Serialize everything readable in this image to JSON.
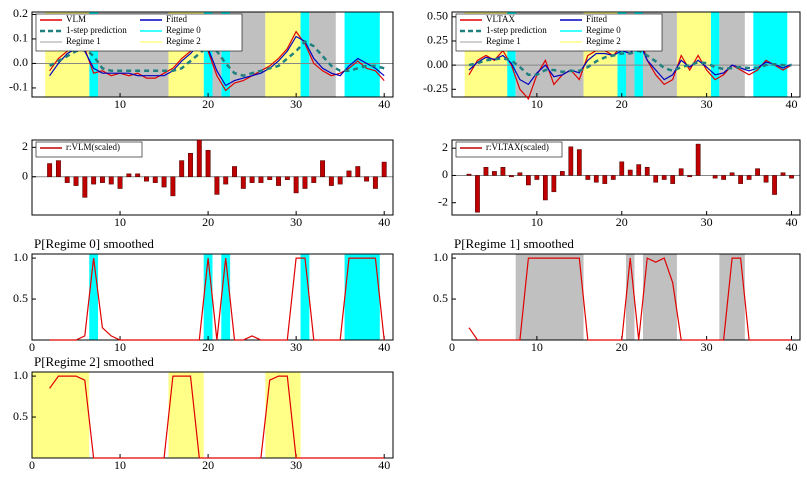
{
  "chart_data": [
    {
      "type": "line",
      "xlim": [
        0,
        41
      ],
      "xticks": [
        10,
        20,
        30,
        40
      ],
      "ylim": [
        -0.137,
        0.21
      ],
      "yticks": [
        -0.1,
        {
          "value": 0,
          "label": "0.0"
        },
        0.1,
        0.2
      ],
      "zero_line": true,
      "x": [
        2,
        3,
        4,
        5,
        6,
        7,
        8,
        9,
        10,
        11,
        12,
        13,
        14,
        15,
        16,
        17,
        18,
        19,
        20,
        21,
        22,
        23,
        24,
        25,
        26,
        27,
        28,
        29,
        30,
        31,
        32,
        33,
        34,
        35,
        36,
        37,
        38,
        39,
        40
      ],
      "series": [
        {
          "name": "VLM",
          "color": "#e00000",
          "values": [
            -0.03,
            0.02,
            0.05,
            0.08,
            0.06,
            -0.04,
            -0.03,
            -0.05,
            -0.04,
            -0.05,
            -0.04,
            -0.06,
            -0.06,
            -0.04,
            -0.02,
            0.02,
            0.05,
            0.1,
            0.05,
            -0.05,
            -0.11,
            -0.08,
            -0.07,
            -0.05,
            -0.03,
            -0.01,
            0.02,
            0.06,
            0.13,
            0.08,
            0.0,
            -0.03,
            -0.05,
            -0.04,
            -0.02,
            0.01,
            -0.02,
            -0.03,
            -0.07
          ]
        },
        {
          "name": "Fitted",
          "color": "#0000c0",
          "values": [
            -0.05,
            0.0,
            0.04,
            0.06,
            0.05,
            -0.02,
            -0.04,
            -0.04,
            -0.04,
            -0.04,
            -0.05,
            -0.05,
            -0.05,
            -0.05,
            -0.03,
            0.01,
            0.04,
            0.08,
            0.06,
            -0.03,
            -0.09,
            -0.07,
            -0.06,
            -0.05,
            -0.04,
            -0.02,
            0.01,
            0.05,
            0.11,
            0.09,
            0.02,
            -0.02,
            -0.04,
            -0.05,
            -0.01,
            0.02,
            0.0,
            -0.02,
            -0.05
          ]
        },
        {
          "name": "1-step prediction",
          "color": "#208080",
          "dash": true,
          "values": [
            -0.01,
            0.01,
            0.03,
            0.05,
            0.06,
            0.03,
            -0.02,
            -0.03,
            -0.03,
            -0.03,
            -0.03,
            -0.03,
            -0.03,
            -0.03,
            -0.03,
            -0.02,
            0.01,
            0.04,
            0.07,
            0.05,
            0.0,
            -0.04,
            -0.05,
            -0.04,
            -0.03,
            -0.02,
            -0.01,
            0.02,
            0.05,
            0.09,
            0.07,
            0.03,
            -0.01,
            -0.03,
            -0.03,
            -0.02,
            -0.01,
            -0.01,
            -0.02
          ]
        }
      ],
      "regimes": [
        {
          "name": "Regime 0",
          "color": "#00ffff",
          "spans": [
            [
              6.5,
              7.5
            ],
            [
              19.5,
              20.5
            ],
            [
              21.5,
              22.5
            ],
            [
              30.5,
              31.5
            ],
            [
              35.5,
              39.5
            ]
          ]
        },
        {
          "name": "Regime 1",
          "color": "#c0c0c0",
          "spans": [
            [
              7.5,
              15.5
            ],
            [
              20.5,
              21.5
            ],
            [
              22.5,
              26.5
            ],
            [
              31.5,
              34.5
            ]
          ]
        },
        {
          "name": "Regime 2",
          "color": "#ffff88",
          "spans": [
            [
              1.5,
              6.5
            ],
            [
              15.5,
              19.5
            ],
            [
              26.5,
              30.5
            ]
          ]
        }
      ]
    },
    {
      "type": "line",
      "xlim": [
        0,
        41
      ],
      "xticks": [
        10,
        20,
        30,
        40
      ],
      "ylim": [
        -0.33,
        0.55
      ],
      "yticks": [
        -0.25,
        {
          "value": 0,
          "label": "0.00"
        },
        0.25,
        {
          "value": 0.5,
          "label": "0.50"
        }
      ],
      "zero_line": true,
      "x": [
        2,
        3,
        4,
        5,
        6,
        7,
        8,
        9,
        10,
        11,
        12,
        13,
        14,
        15,
        16,
        17,
        18,
        19,
        20,
        21,
        22,
        23,
        24,
        25,
        26,
        27,
        28,
        29,
        30,
        31,
        32,
        33,
        34,
        35,
        36,
        37,
        38,
        39,
        40
      ],
      "series": [
        {
          "name": "VLTAX",
          "color": "#e00000",
          "values": [
            -0.1,
            0.05,
            0.1,
            0.05,
            0.15,
            0.0,
            -0.25,
            -0.35,
            -0.1,
            0.05,
            -0.2,
            -0.1,
            -0.05,
            -0.15,
            0.1,
            0.15,
            0.15,
            0.1,
            0.2,
            0.15,
            0.35,
            0.05,
            -0.1,
            -0.2,
            -0.15,
            0.1,
            -0.05,
            0.1,
            -0.05,
            -0.15,
            -0.1,
            0.0,
            -0.05,
            -0.1,
            -0.05,
            0.05,
            0.0,
            -0.05,
            0.0
          ]
        },
        {
          "name": "Fitted",
          "color": "#0000c0",
          "values": [
            -0.05,
            0.03,
            0.08,
            0.06,
            0.1,
            0.02,
            -0.15,
            -0.2,
            -0.08,
            0.0,
            -0.12,
            -0.1,
            -0.05,
            -0.08,
            0.05,
            0.12,
            0.12,
            0.1,
            0.15,
            0.12,
            0.25,
            0.05,
            -0.05,
            -0.15,
            -0.1,
            0.05,
            -0.02,
            0.05,
            -0.02,
            -0.1,
            -0.08,
            0.0,
            -0.03,
            -0.06,
            -0.03,
            0.03,
            0.01,
            -0.03,
            0.01
          ]
        },
        {
          "name": "1-step prediction",
          "color": "#208080",
          "dash": true,
          "values": [
            0.0,
            0.02,
            0.05,
            0.06,
            0.07,
            0.05,
            -0.02,
            -0.1,
            -0.1,
            -0.05,
            -0.05,
            -0.07,
            -0.06,
            -0.06,
            -0.02,
            0.04,
            0.08,
            0.1,
            0.12,
            0.12,
            0.15,
            0.1,
            0.04,
            -0.03,
            -0.06,
            -0.02,
            0.0,
            0.03,
            0.02,
            -0.02,
            -0.04,
            -0.03,
            -0.02,
            -0.03,
            -0.03,
            0.0,
            0.01,
            0.0,
            0.0
          ]
        }
      ],
      "regimes": [
        {
          "name": "Regime 0",
          "color": "#00ffff",
          "spans": [
            [
              6.5,
              7.5
            ],
            [
              19.5,
              20.5
            ],
            [
              21.5,
              22.5
            ],
            [
              30.5,
              31.5
            ],
            [
              35.5,
              39.5
            ]
          ]
        },
        {
          "name": "Regime 1",
          "color": "#c0c0c0",
          "spans": [
            [
              7.5,
              15.5
            ],
            [
              20.5,
              21.5
            ],
            [
              22.5,
              26.5
            ],
            [
              31.5,
              34.5
            ]
          ]
        },
        {
          "name": "Regime 2",
          "color": "#ffff88",
          "spans": [
            [
              1.5,
              6.5
            ],
            [
              15.5,
              19.5
            ],
            [
              26.5,
              30.5
            ]
          ]
        }
      ]
    },
    {
      "type": "bar",
      "xlim": [
        0,
        41
      ],
      "xticks": [
        10,
        20,
        30,
        40
      ],
      "ylim": [
        -2.6,
        2.5
      ],
      "yticks": [
        0,
        2
      ],
      "zero_line": true,
      "x": [
        2,
        3,
        4,
        5,
        6,
        7,
        8,
        9,
        10,
        11,
        12,
        13,
        14,
        15,
        16,
        17,
        18,
        19,
        20,
        21,
        22,
        23,
        24,
        25,
        26,
        27,
        28,
        29,
        30,
        31,
        32,
        33,
        34,
        35,
        36,
        37,
        38,
        39,
        40
      ],
      "series": [
        {
          "name": "r:VLM(scaled)",
          "color": "#c00000",
          "values": [
            0.9,
            1.1,
            -0.4,
            -0.6,
            -1.4,
            -0.5,
            -0.4,
            -0.5,
            -0.8,
            0.2,
            0.2,
            -0.3,
            -0.4,
            -0.7,
            -1.3,
            1.1,
            1.6,
            2.5,
            1.8,
            -1.2,
            -0.5,
            0.7,
            -0.8,
            -0.4,
            -0.4,
            -0.2,
            -0.6,
            -0.2,
            -1.1,
            -0.8,
            -0.4,
            1.1,
            -0.6,
            -0.5,
            0.4,
            0.7,
            -0.3,
            -0.8,
            1.0
          ]
        }
      ]
    },
    {
      "type": "bar",
      "xlim": [
        0,
        41
      ],
      "xticks": [
        10,
        20,
        30,
        40
      ],
      "ylim": [
        -2.9,
        2.6
      ],
      "yticks": [
        -2,
        0,
        2
      ],
      "zero_line": true,
      "x": [
        2,
        3,
        4,
        5,
        6,
        7,
        8,
        9,
        10,
        11,
        12,
        13,
        14,
        15,
        16,
        17,
        18,
        19,
        20,
        21,
        22,
        23,
        24,
        25,
        26,
        27,
        28,
        29,
        30,
        31,
        32,
        33,
        34,
        35,
        36,
        37,
        38,
        39,
        40
      ],
      "series": [
        {
          "name": "r:VLTAX(scaled)",
          "color": "#c00000",
          "values": [
            0.1,
            -2.7,
            0.6,
            0.3,
            0.6,
            -0.1,
            0.2,
            -0.7,
            -0.3,
            -1.8,
            -1.2,
            0.3,
            2.1,
            1.9,
            -0.3,
            -0.5,
            -0.6,
            -0.3,
            1.0,
            0.4,
            0.8,
            0.6,
            -0.5,
            -0.3,
            -0.6,
            0.5,
            -0.1,
            2.3,
            0.0,
            -0.2,
            -0.3,
            0.2,
            -0.6,
            -0.3,
            0.5,
            -0.5,
            -1.4,
            0.2,
            -0.2
          ]
        }
      ]
    },
    {
      "type": "line",
      "title": "P[Regime 0] smoothed",
      "xlim": [
        0,
        41
      ],
      "xticks": [
        0,
        10,
        20,
        30,
        40
      ],
      "ylim": [
        0,
        1.05
      ],
      "yticks": [
        0.5,
        {
          "value": 1,
          "label": "1.0"
        }
      ],
      "x": [
        2,
        3,
        4,
        5,
        6,
        7,
        8,
        9,
        10,
        11,
        12,
        13,
        14,
        15,
        16,
        17,
        18,
        19,
        20,
        21,
        22,
        23,
        24,
        25,
        26,
        27,
        28,
        29,
        30,
        31,
        32,
        33,
        34,
        35,
        36,
        37,
        38,
        39,
        40
      ],
      "series": [
        {
          "color": "#e00000",
          "values": [
            0,
            0,
            0,
            0,
            0.05,
            1,
            0.15,
            0.05,
            0,
            0,
            0,
            0,
            0,
            0,
            0,
            0,
            0,
            0,
            1,
            0,
            1,
            0,
            0,
            0.05,
            0,
            0,
            0,
            0,
            1,
            1,
            0,
            0,
            0,
            0,
            1,
            1,
            1,
            1,
            0
          ]
        }
      ],
      "shading": {
        "color": "#00ffff",
        "spans": [
          [
            6.5,
            7.5
          ],
          [
            19.5,
            20.5
          ],
          [
            21.5,
            22.5
          ],
          [
            30.5,
            31.5
          ],
          [
            35.5,
            39.5
          ]
        ]
      }
    },
    {
      "type": "line",
      "title": "P[Regime 1] smoothed",
      "xlim": [
        0,
        41
      ],
      "xticks": [
        0,
        10,
        20,
        30,
        40
      ],
      "ylim": [
        0,
        1.05
      ],
      "yticks": [
        0.5,
        {
          "value": 1,
          "label": "1.0"
        }
      ],
      "x": [
        2,
        3,
        4,
        5,
        6,
        7,
        8,
        9,
        10,
        11,
        12,
        13,
        14,
        15,
        16,
        17,
        18,
        19,
        20,
        21,
        22,
        23,
        24,
        25,
        26,
        27,
        28,
        29,
        30,
        31,
        32,
        33,
        34,
        35,
        36,
        37,
        38,
        39,
        40
      ],
      "series": [
        {
          "color": "#e00000",
          "values": [
            0.15,
            0,
            0,
            0,
            0,
            0,
            0,
            1,
            1,
            1,
            1,
            1,
            1,
            1,
            0,
            0,
            0,
            0,
            0,
            1,
            0,
            1,
            0.95,
            1,
            0.7,
            0,
            0,
            0,
            0,
            0,
            0,
            1,
            1,
            0,
            0,
            0,
            0,
            0,
            0
          ]
        }
      ],
      "shading": {
        "color": "#c0c0c0",
        "spans": [
          [
            7.5,
            15.5
          ],
          [
            20.5,
            21.5
          ],
          [
            22.5,
            26.5
          ],
          [
            31.5,
            34.5
          ]
        ]
      }
    },
    {
      "type": "line",
      "title": "P[Regime 2] smoothed",
      "xlim": [
        0,
        41
      ],
      "xticks": [
        0,
        10,
        20,
        30,
        40
      ],
      "ylim": [
        0,
        1.05
      ],
      "yticks": [
        0.5,
        {
          "value": 1,
          "label": "1.0"
        }
      ],
      "x": [
        2,
        3,
        4,
        5,
        6,
        7,
        8,
        9,
        10,
        11,
        12,
        13,
        14,
        15,
        16,
        17,
        18,
        19,
        20,
        21,
        22,
        23,
        24,
        25,
        26,
        27,
        28,
        29,
        30,
        31,
        32,
        33,
        34,
        35,
        36,
        37,
        38,
        39,
        40
      ],
      "series": [
        {
          "color": "#e00000",
          "values": [
            0.85,
            1,
            1,
            1,
            0.95,
            0,
            0,
            0,
            0,
            0,
            0,
            0,
            0,
            0,
            1,
            1,
            1,
            0,
            0,
            0,
            0,
            0,
            0,
            0,
            0,
            0.95,
            1,
            1,
            0,
            0,
            0,
            0,
            0,
            0,
            0,
            0,
            0,
            0,
            0
          ]
        }
      ],
      "shading": {
        "color": "#ffff88",
        "spans": [
          [
            0,
            6.5
          ],
          [
            15.5,
            19.5
          ],
          [
            26.5,
            30.5
          ]
        ]
      }
    }
  ]
}
